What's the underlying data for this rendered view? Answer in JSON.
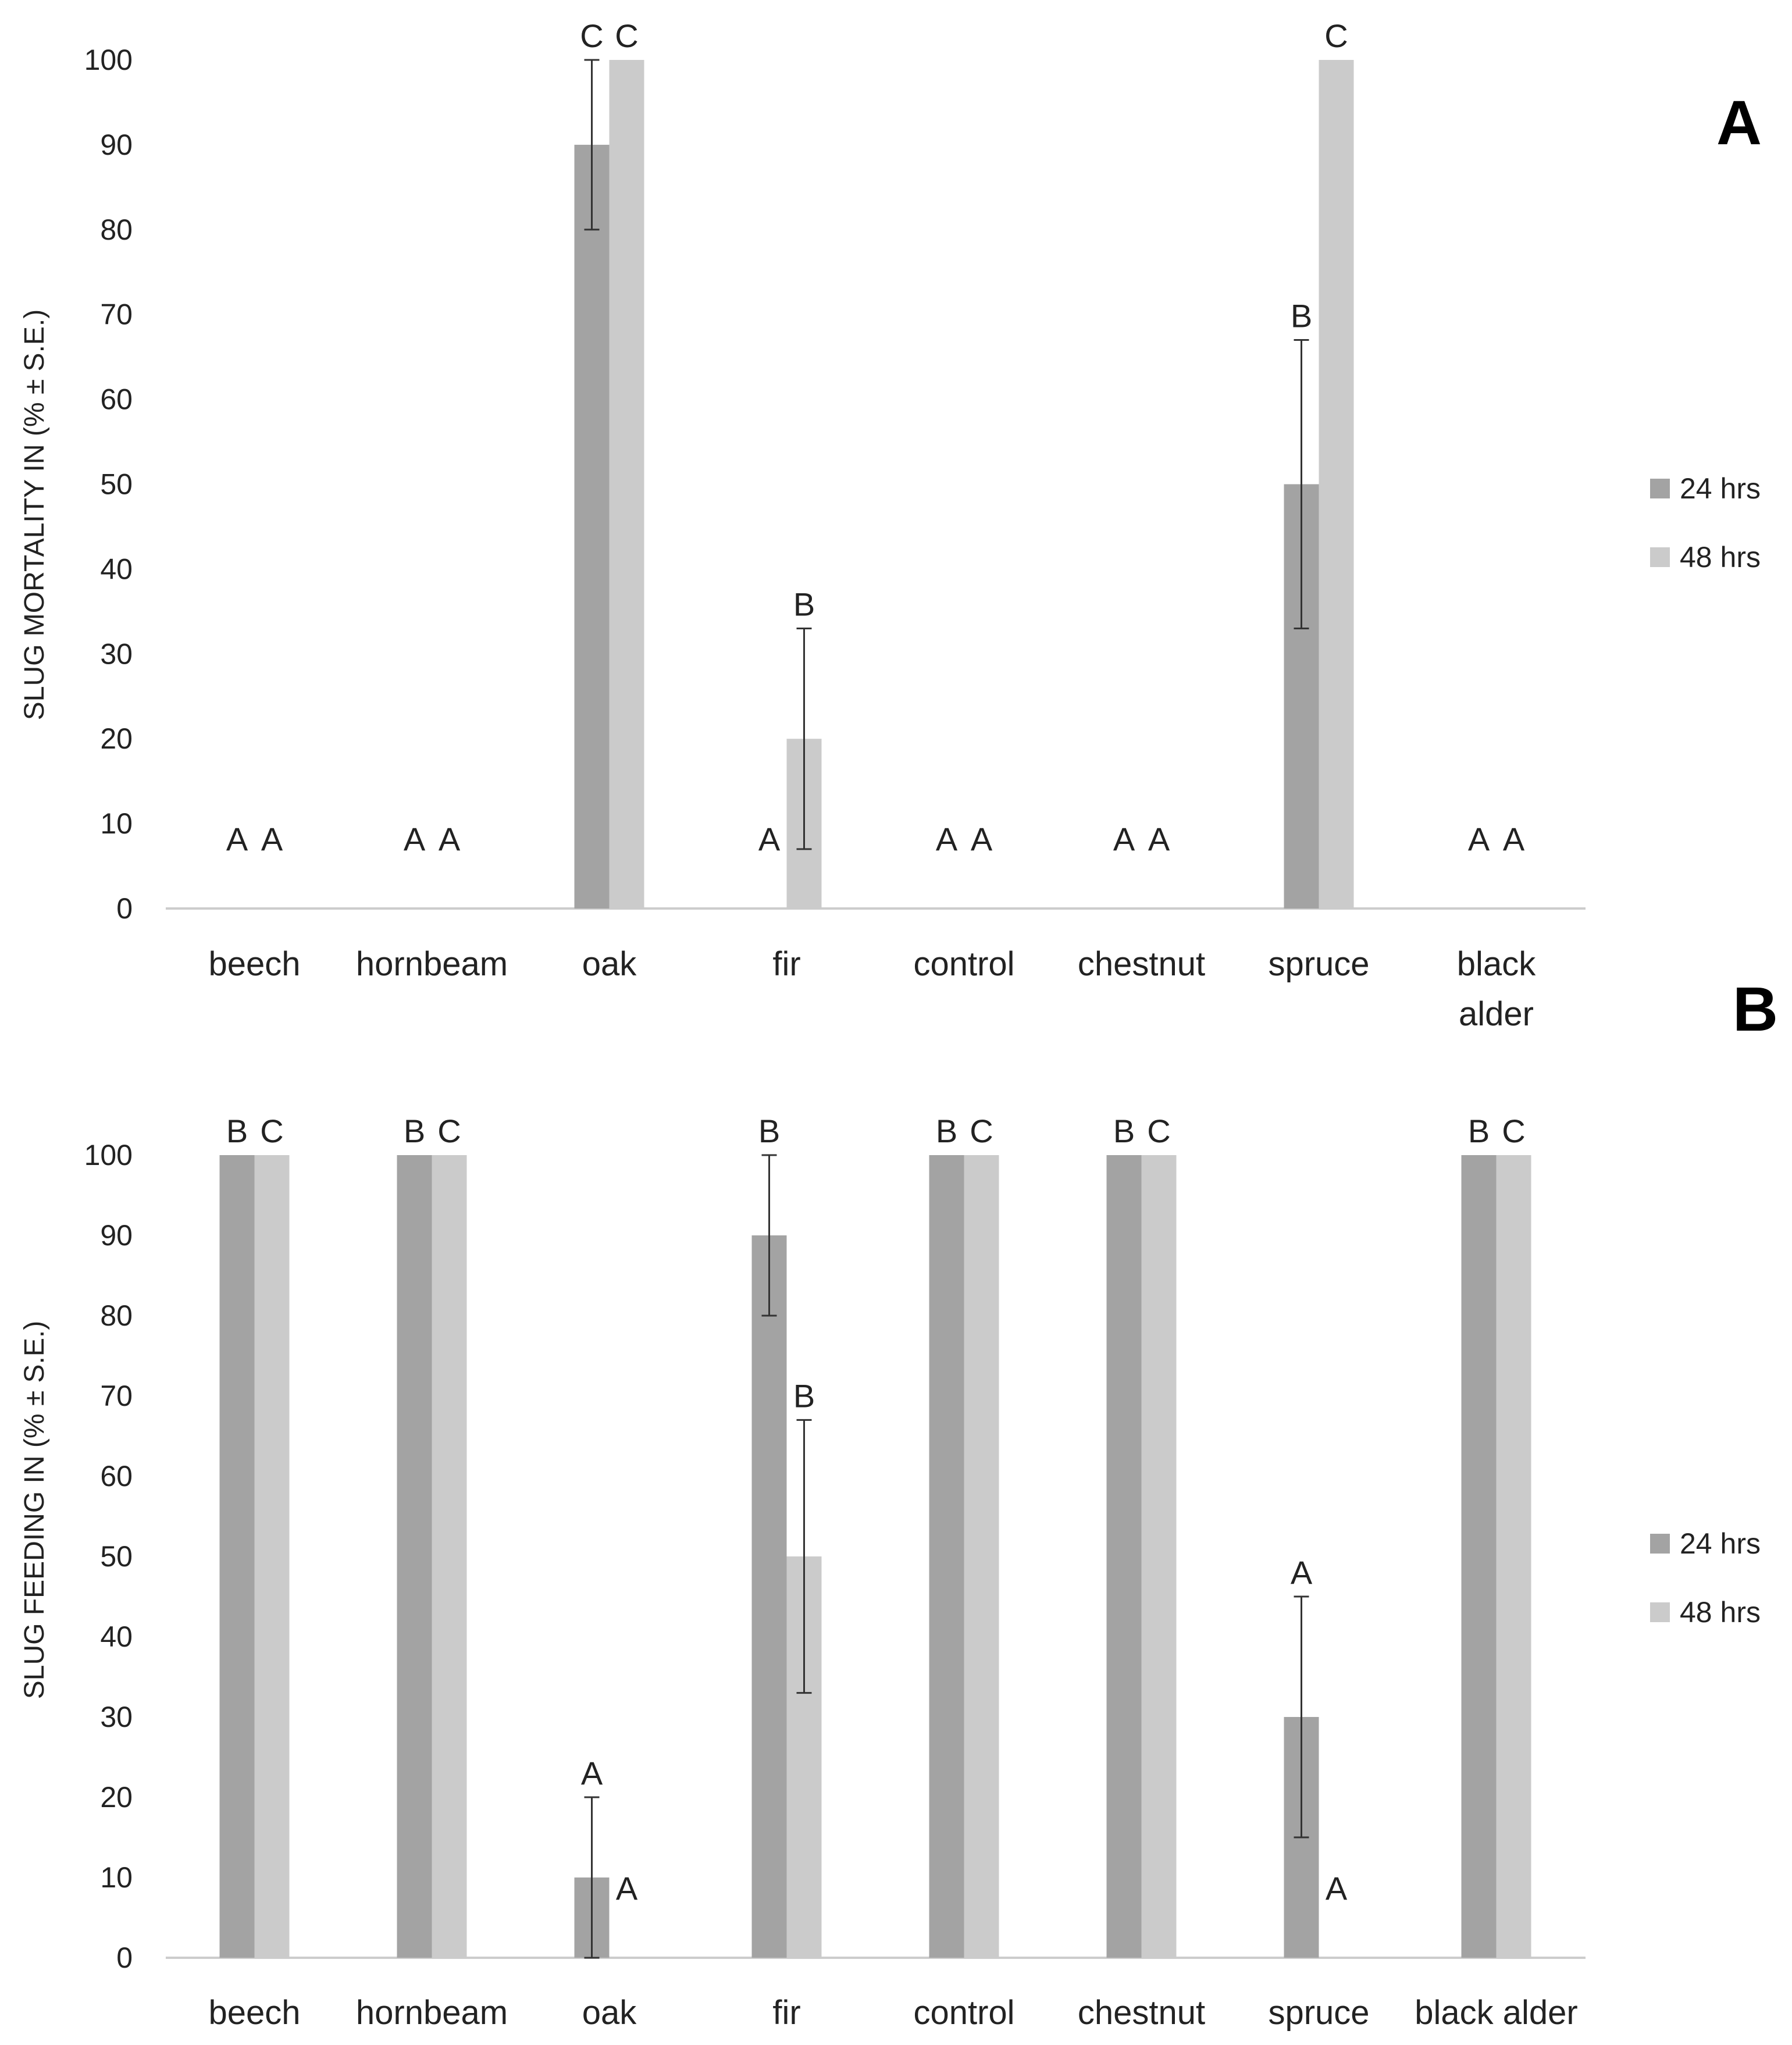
{
  "figure": {
    "colors": {
      "s24": "#a3a3a3",
      "s48": "#cbcbcb",
      "axis": "#cccccc",
      "error": "#333333"
    },
    "legend": {
      "series": [
        "24 hrs",
        "48 hrs"
      ]
    }
  },
  "chart_data": [
    {
      "type": "bar",
      "panel_label": "A",
      "title": "",
      "xlabel": "",
      "ylabel": "SLUG MORTALITY IN (% ± S.E.)",
      "ylim": [
        0,
        100
      ],
      "y_ticks": [
        "0",
        "10",
        "20",
        "30",
        "40",
        "50",
        "60",
        "70",
        "80",
        "90",
        "100"
      ],
      "categories": [
        "beech",
        "hornbeam",
        "oak",
        "fir",
        "control",
        "chestnut",
        "spruce",
        "black alder"
      ],
      "category_lines": [
        [
          "beech"
        ],
        [
          "hornbeam"
        ],
        [
          "oak"
        ],
        [
          "fir"
        ],
        [
          "control"
        ],
        [
          "chestnut"
        ],
        [
          "spruce"
        ],
        [
          "black",
          "alder"
        ]
      ],
      "series": [
        {
          "name": "24 hrs",
          "values": [
            0,
            0,
            90,
            0,
            0,
            0,
            50,
            0
          ],
          "error": [
            0,
            0,
            10,
            0,
            0,
            0,
            17,
            0
          ],
          "letters": [
            "A",
            "A",
            "C",
            "A",
            "A",
            "A",
            "B",
            "A"
          ]
        },
        {
          "name": "48 hrs",
          "values": [
            0,
            0,
            100,
            20,
            0,
            0,
            100,
            0
          ],
          "error": [
            0,
            0,
            0,
            13,
            0,
            0,
            0,
            0
          ],
          "letters": [
            "A",
            "A",
            "C",
            "B",
            "A",
            "A",
            "C",
            "A"
          ]
        }
      ],
      "legend_position": "right"
    },
    {
      "type": "bar",
      "panel_label": "B",
      "title": "",
      "xlabel": "",
      "ylabel": "SLUG FEEDING IN (% ± S.E.)",
      "ylim": [
        0,
        100
      ],
      "y_ticks": [
        "0",
        "10",
        "20",
        "30",
        "40",
        "50",
        "60",
        "70",
        "80",
        "90",
        "100"
      ],
      "categories": [
        "beech",
        "hornbeam",
        "oak",
        "fir",
        "control",
        "chestnut",
        "spruce",
        "black alder"
      ],
      "category_lines": [
        [
          "beech"
        ],
        [
          "hornbeam"
        ],
        [
          "oak"
        ],
        [
          "fir"
        ],
        [
          "control"
        ],
        [
          "chestnut"
        ],
        [
          "spruce"
        ],
        [
          "black alder"
        ]
      ],
      "series": [
        {
          "name": "24 hrs",
          "values": [
            100,
            100,
            10,
            90,
            100,
            100,
            30,
            100
          ],
          "error": [
            0,
            0,
            10,
            10,
            0,
            0,
            15,
            0
          ],
          "letters": [
            "B",
            "B",
            "A",
            "B",
            "B",
            "B",
            "A",
            "B"
          ]
        },
        {
          "name": "48 hrs",
          "values": [
            100,
            100,
            0,
            50,
            100,
            100,
            0,
            100
          ],
          "error": [
            0,
            0,
            0,
            17,
            0,
            0,
            0,
            0
          ],
          "letters": [
            "C",
            "C",
            "A",
            "B",
            "C",
            "C",
            "A",
            "C"
          ]
        }
      ],
      "legend_position": "right"
    }
  ]
}
